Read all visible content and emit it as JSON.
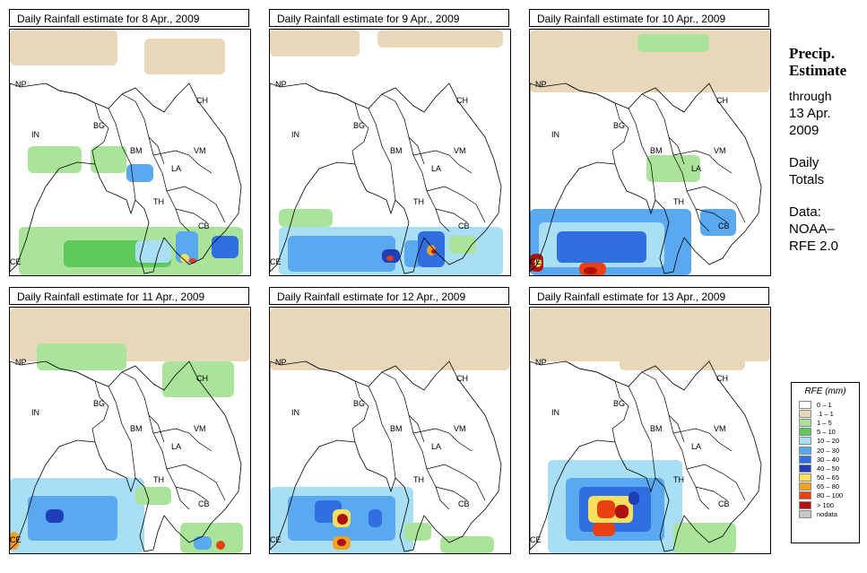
{
  "panels": [
    {
      "title": "Daily Rainfall estimate for  8 Apr., 2009"
    },
    {
      "title": "Daily Rainfall estimate for  9 Apr., 2009"
    },
    {
      "title": "Daily Rainfall estimate for  10 Apr., 2009"
    },
    {
      "title": "Daily Rainfall estimate for  11 Apr., 2009"
    },
    {
      "title": "Daily Rainfall estimate for  12 Apr., 2009"
    },
    {
      "title": "Daily Rainfall estimate for  13 Apr., 2009"
    }
  ],
  "country_labels": {
    "np": "NP",
    "ch": "CH",
    "in": "IN",
    "bg": "BG",
    "bm": "BM",
    "vm": "VM",
    "la": "LA",
    "th": "TH",
    "cb": "CB",
    "ce": "CE"
  },
  "side": {
    "head1": "Precip.",
    "head2": "Estimate",
    "through": "through",
    "date1": "13 Apr.",
    "date2": "2009",
    "daily1": "Daily",
    "daily2": "Totals",
    "data1": "Data:",
    "data2": "NOAA–",
    "data3": "RFE 2.0"
  },
  "legend": {
    "title": "RFE (mm)",
    "items": [
      {
        "label": "0 – 1",
        "color": "#ffffff"
      },
      {
        "label": ".1 – 1",
        "color": "#e8d7b9"
      },
      {
        "label": "1 – 5",
        "color": "#a9e49a"
      },
      {
        "label": "5 – 10",
        "color": "#5ec95a"
      },
      {
        "label": "10 – 20",
        "color": "#a8dff5"
      },
      {
        "label": "20 – 30",
        "color": "#5aa8f0"
      },
      {
        "label": "30 – 40",
        "color": "#2f6fe0"
      },
      {
        "label": "40 – 50",
        "color": "#1f3fb8"
      },
      {
        "label": "50 – 65",
        "color": "#f7e060"
      },
      {
        "label": "65 – 80",
        "color": "#f4a020"
      },
      {
        "label": "80 – 100",
        "color": "#e84010"
      },
      {
        "label": "> 100",
        "color": "#b01010"
      },
      {
        "label": "nodata",
        "color": "#c8c8c8"
      }
    ]
  }
}
